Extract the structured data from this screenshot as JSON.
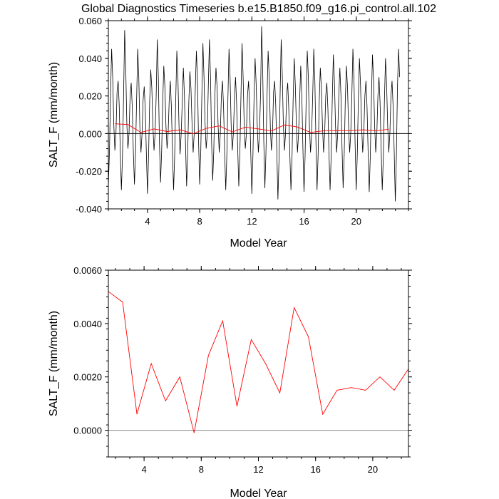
{
  "title": "Global Diagnostics Timeseries b.e15.B1850.f09_g16.pi_control.all.102",
  "colors": {
    "monthly_line": "#000000",
    "annual_line": "#ff0000",
    "zero_line_top": "#000000",
    "zero_line_bottom": "#888888"
  },
  "chart_data": [
    {
      "type": "line",
      "title": "Global Diagnostics Timeseries b.e15.B1850.f09_g16.pi_control.all.102",
      "xlabel": "Model Year",
      "ylabel": "SALT_F (mm/month)",
      "xlim": [
        1,
        24
      ],
      "ylim": [
        -0.04,
        0.06
      ],
      "xticks": [
        4,
        8,
        12,
        16,
        20
      ],
      "xtick_labels": [
        "4",
        "8",
        "12",
        "16",
        "20"
      ],
      "yticks": [
        -0.04,
        -0.02,
        0.0,
        0.02,
        0.04,
        0.06
      ],
      "ytick_labels": [
        "-0.040",
        "-0.020",
        "0.000",
        "0.020",
        "0.040",
        "0.060"
      ],
      "reference_line": 0,
      "series": [
        {
          "name": "monthly",
          "color": "#000000",
          "x_start": 1.0,
          "x_step": 0.0833,
          "values": [
            -0.028,
            -0.01,
            0.02,
            0.045,
            0.03,
            0.005,
            -0.009,
            0.0,
            0.022,
            0.028,
            0.015,
            -0.01,
            -0.03,
            -0.012,
            0.02,
            0.055,
            0.035,
            0.005,
            -0.008,
            0.0,
            0.02,
            0.027,
            0.014,
            -0.01,
            -0.027,
            -0.01,
            0.018,
            0.045,
            0.03,
            0.003,
            -0.01,
            0.0,
            0.018,
            0.025,
            0.012,
            -0.011,
            -0.032,
            -0.012,
            0.017,
            0.034,
            0.024,
            0.004,
            -0.009,
            0.0,
            0.02,
            0.05,
            0.03,
            -0.005,
            -0.026,
            -0.01,
            0.016,
            0.036,
            0.025,
            0.004,
            -0.008,
            0.0,
            0.018,
            0.028,
            0.014,
            -0.01,
            -0.03,
            -0.012,
            0.018,
            0.044,
            0.03,
            0.004,
            -0.011,
            0.0,
            0.017,
            0.035,
            0.02,
            -0.006,
            -0.028,
            -0.01,
            0.016,
            0.033,
            0.024,
            0.005,
            -0.01,
            0.0,
            0.024,
            0.044,
            0.028,
            -0.004,
            -0.027,
            -0.01,
            0.02,
            0.048,
            0.03,
            0.005,
            -0.008,
            0.0,
            0.026,
            0.05,
            0.03,
            -0.005,
            -0.025,
            -0.009,
            0.02,
            0.035,
            0.025,
            0.004,
            -0.01,
            0.0,
            0.02,
            0.028,
            0.014,
            -0.01,
            -0.03,
            -0.012,
            0.019,
            0.045,
            0.03,
            0.004,
            -0.009,
            0.0,
            0.018,
            0.03,
            0.016,
            -0.008,
            -0.028,
            -0.01,
            0.02,
            0.048,
            0.03,
            0.004,
            -0.008,
            0.0,
            0.02,
            0.028,
            0.014,
            -0.01,
            -0.032,
            -0.012,
            0.018,
            0.04,
            0.026,
            0.004,
            -0.01,
            0.0,
            0.02,
            0.057,
            0.034,
            -0.004,
            -0.029,
            -0.01,
            0.02,
            0.044,
            0.03,
            0.004,
            -0.009,
            0.0,
            0.022,
            0.028,
            0.015,
            -0.01,
            -0.035,
            -0.014,
            0.02,
            0.05,
            0.032,
            0.005,
            -0.009,
            0.0,
            0.02,
            0.027,
            0.013,
            -0.012,
            -0.03,
            -0.012,
            0.018,
            0.04,
            0.026,
            0.004,
            -0.01,
            0.0,
            0.018,
            0.036,
            0.02,
            -0.008,
            -0.031,
            -0.012,
            0.018,
            0.044,
            0.03,
            0.004,
            -0.01,
            0.0,
            0.02,
            0.045,
            0.028,
            -0.005,
            -0.03,
            -0.011,
            0.017,
            0.035,
            0.024,
            0.004,
            -0.01,
            0.0,
            0.02,
            0.027,
            0.013,
            -0.011,
            -0.03,
            -0.012,
            0.018,
            0.042,
            0.028,
            0.004,
            -0.01,
            0.0,
            0.02,
            0.035,
            0.02,
            -0.008,
            -0.029,
            -0.011,
            0.018,
            0.036,
            0.025,
            0.004,
            -0.01,
            0.0,
            0.02,
            0.045,
            0.028,
            -0.005,
            -0.03,
            -0.012,
            0.018,
            0.04,
            0.026,
            0.004,
            -0.01,
            0.0,
            0.02,
            0.028,
            0.014,
            -0.01,
            -0.031,
            -0.012,
            0.018,
            0.042,
            0.028,
            0.004,
            -0.01,
            0.0,
            0.02,
            0.03,
            0.016,
            -0.009,
            -0.03,
            -0.012,
            0.018,
            0.04,
            0.026,
            0.004,
            -0.01,
            0.0,
            0.02,
            0.028,
            0.014,
            -0.01,
            -0.036,
            -0.012,
            0.025,
            0.045,
            0.03
          ]
        },
        {
          "name": "annual",
          "color": "#ff0000",
          "x": [
            1.5,
            2.5,
            3.5,
            4.5,
            5.5,
            6.5,
            7.5,
            8.5,
            9.5,
            10.5,
            11.5,
            12.5,
            13.5,
            14.5,
            15.5,
            16.5,
            17.5,
            18.5,
            19.5,
            20.5,
            21.5,
            22.5
          ],
          "values": [
            0.0052,
            0.0048,
            0.0006,
            0.0025,
            0.0011,
            0.002,
            -0.0001,
            0.0028,
            0.0041,
            0.0009,
            0.0034,
            0.0025,
            0.0014,
            0.0046,
            0.0035,
            0.0006,
            0.0015,
            0.0016,
            0.0015,
            0.002,
            0.0015,
            0.0023
          ]
        }
      ]
    },
    {
      "type": "line",
      "title": "",
      "xlabel": "Model Year",
      "ylabel": "SALT_F (mm/month)",
      "xlim": [
        1.5,
        22.5
      ],
      "ylim": [
        -0.001,
        0.006
      ],
      "xticks": [
        4,
        8,
        12,
        16,
        20
      ],
      "xtick_labels": [
        "4",
        "8",
        "12",
        "16",
        "20"
      ],
      "yticks": [
        0.0,
        0.002,
        0.004,
        0.006
      ],
      "ytick_labels": [
        "0.0000",
        "0.0020",
        "0.0040",
        "0.0060"
      ],
      "reference_line": 0,
      "series": [
        {
          "name": "annual",
          "color": "#ff0000",
          "x": [
            1.5,
            2.5,
            3.5,
            4.5,
            5.5,
            6.5,
            7.5,
            8.5,
            9.5,
            10.5,
            11.5,
            12.5,
            13.5,
            14.5,
            15.5,
            16.5,
            17.5,
            18.5,
            19.5,
            20.5,
            21.5,
            22.5
          ],
          "values": [
            0.0052,
            0.0048,
            0.0006,
            0.0025,
            0.0011,
            0.002,
            -0.0001,
            0.0028,
            0.0041,
            0.0009,
            0.0034,
            0.0025,
            0.0014,
            0.0046,
            0.0035,
            0.0006,
            0.0015,
            0.0016,
            0.0015,
            0.002,
            0.0015,
            0.0023
          ]
        }
      ]
    }
  ]
}
